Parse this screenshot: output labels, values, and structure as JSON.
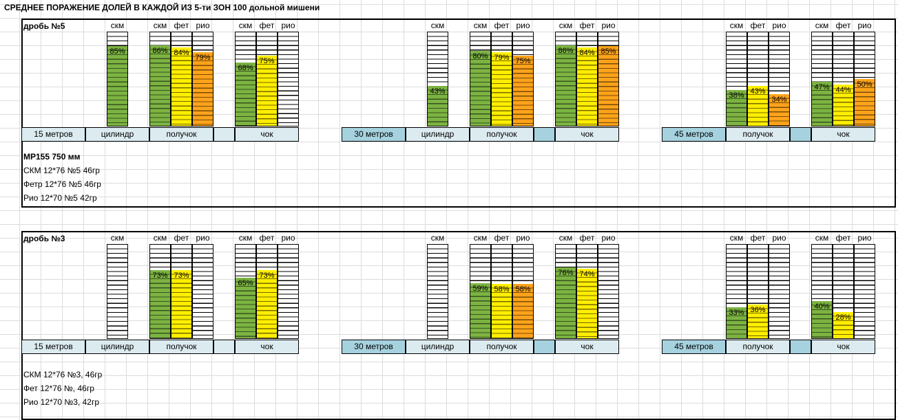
{
  "title": "СРЕДНЕЕ ПОРАЖЕНИЕ ДОЛЕЙ В КАЖДОЙ ИЗ 5-ти ЗОН 100 дольной мишени",
  "colors": {
    "скм": "#7cb342",
    "фет": "#ffee00",
    "рио": "#ffa31a",
    "label_light": "#dcebf0",
    "label_dark": "#a6d2df"
  },
  "chart_data": [
    {
      "type": "bar",
      "title": "дробь №5",
      "ylim": [
        0,
        100
      ],
      "series_names": [
        "скм",
        "фет",
        "рио"
      ],
      "groups": [
        {
          "distance": "15 метров",
          "choke": "цилиндр",
          "values": {
            "скм": 85
          }
        },
        {
          "distance": "15 метров",
          "choke": "получок",
          "values": {
            "скм": 86,
            "фет": 84,
            "рио": 79
          }
        },
        {
          "distance": "15 метров",
          "choke": "чок",
          "values": {
            "скм": 68,
            "фет": 75
          }
        },
        {
          "distance": "30 метров",
          "choke": "цилиндр",
          "values": {
            "скм": 43
          }
        },
        {
          "distance": "30 метров",
          "choke": "получок",
          "values": {
            "скм": 80,
            "фет": 79,
            "рио": 75
          }
        },
        {
          "distance": "30 метров",
          "choke": "чок",
          "values": {
            "скм": 86,
            "фет": 84,
            "рио": 85
          }
        },
        {
          "distance": "45 метров",
          "choke": "получок",
          "values": {
            "скм": 38,
            "фет": 43,
            "рио": 34
          }
        },
        {
          "distance": "45 метров",
          "choke": "чок",
          "values": {
            "скм": 47,
            "фет": 44,
            "рио": 50
          }
        }
      ]
    },
    {
      "type": "bar",
      "title": "дробь №3",
      "ylim": [
        0,
        100
      ],
      "series_names": [
        "скм",
        "фет",
        "рио"
      ],
      "groups": [
        {
          "distance": "15 метров",
          "choke": "цилиндр",
          "values": {}
        },
        {
          "distance": "15 метров",
          "choke": "получок",
          "values": {
            "скм": 73,
            "фет": 73
          }
        },
        {
          "distance": "15 метров",
          "choke": "чок",
          "values": {
            "скм": 65,
            "фет": 73
          }
        },
        {
          "distance": "30 метров",
          "choke": "цилиндр",
          "values": {}
        },
        {
          "distance": "30 метров",
          "choke": "получок",
          "values": {
            "скм": 59,
            "фет": 58,
            "рио": 58
          }
        },
        {
          "distance": "30 метров",
          "choke": "чок",
          "values": {
            "скм": 76,
            "фет": 74
          }
        },
        {
          "distance": "45 метров",
          "choke": "получок",
          "values": {
            "скм": 33,
            "фет": 36
          }
        },
        {
          "distance": "45 метров",
          "choke": "чок",
          "values": {
            "скм": 40,
            "фет": 28
          }
        }
      ]
    }
  ],
  "notes": [
    [
      "МР155 750 мм",
      "СКМ 12*76 №5  46гр",
      "Фетр 12*76 №5  46гр",
      "Рио 12*70 №5  42гр"
    ],
    [
      "СКМ 12*76 №3,  46гр",
      "Фет 12*76 №,  46гр",
      "Рио 12*70 №3,  42гр"
    ]
  ]
}
